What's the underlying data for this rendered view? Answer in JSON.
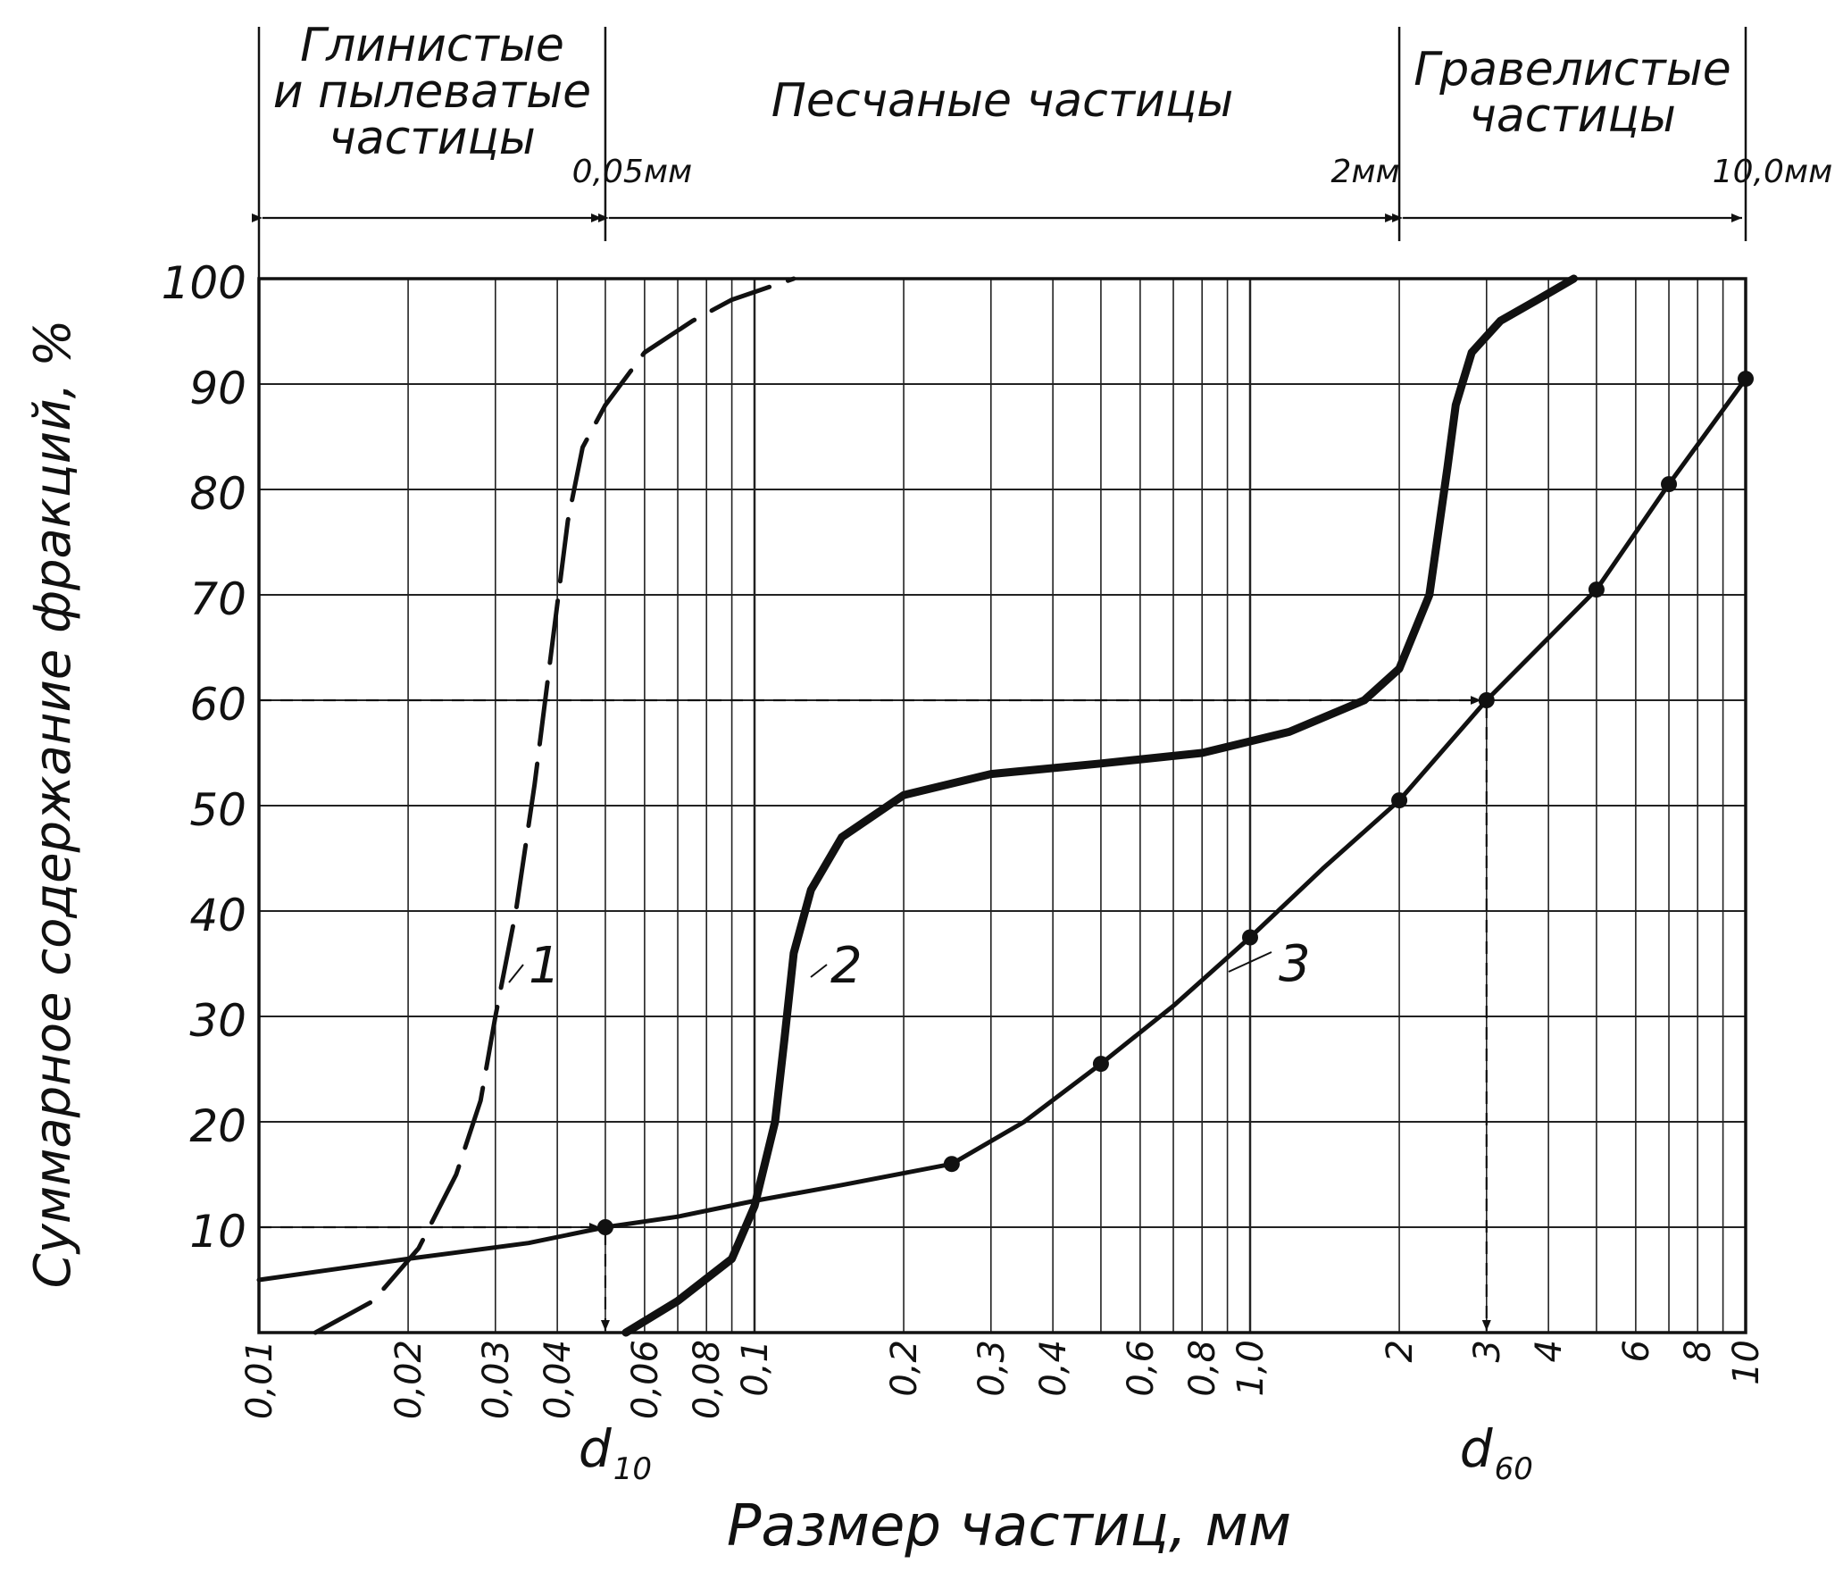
{
  "chart_data": {
    "type": "line",
    "x_scale": "log",
    "xlim": [
      0.01,
      10
    ],
    "ylim": [
      0,
      100
    ],
    "grid": true,
    "xlabel": "Размер   частиц, мм",
    "ylabel": "Суммарное  содержание  фракций, %",
    "yticks": [
      10,
      20,
      30,
      40,
      50,
      60,
      70,
      80,
      90,
      100
    ],
    "xtick_labels": [
      {
        "x": 0.01,
        "text": "0,01"
      },
      {
        "x": 0.02,
        "text": "0,02"
      },
      {
        "x": 0.03,
        "text": "0,03"
      },
      {
        "x": 0.04,
        "text": "0,04"
      },
      {
        "x": 0.06,
        "text": "0,06"
      },
      {
        "x": 0.08,
        "text": "0,08"
      },
      {
        "x": 0.1,
        "text": "0,1"
      },
      {
        "x": 0.2,
        "text": "0,2"
      },
      {
        "x": 0.3,
        "text": "0,3"
      },
      {
        "x": 0.4,
        "text": "0,4"
      },
      {
        "x": 0.6,
        "text": "0,6"
      },
      {
        "x": 0.8,
        "text": "0,8"
      },
      {
        "x": 1.0,
        "text": "1,0"
      },
      {
        "x": 2,
        "text": "2"
      },
      {
        "x": 3,
        "text": "3"
      },
      {
        "x": 4,
        "text": "4"
      },
      {
        "x": 6,
        "text": "6"
      },
      {
        "x": 8,
        "text": "8"
      },
      {
        "x": 10,
        "text": "10"
      }
    ],
    "zones": [
      {
        "name": "Глинистые\nи пылеватые\nчастицы",
        "from": 0.01,
        "to": 0.05
      },
      {
        "name": "Песчаные   частицы",
        "from": 0.05,
        "to": 2
      },
      {
        "name": "Гравелистые\nчастицы",
        "from": 2,
        "to": 10
      }
    ],
    "zone_bounds": [
      {
        "x": 0.05,
        "text": "0,05мм"
      },
      {
        "x": 2,
        "text": "2мм"
      },
      {
        "x": 10,
        "text": "10,0мм"
      }
    ],
    "series": [
      {
        "name": "1",
        "style": "dashed",
        "x": [
          0.013,
          0.017,
          0.021,
          0.025,
          0.028,
          0.03,
          0.033,
          0.036,
          0.039,
          0.042,
          0.045,
          0.05,
          0.06,
          0.075,
          0.09,
          0.12
        ],
        "y": [
          0,
          3,
          8,
          15,
          22,
          30,
          40,
          52,
          65,
          77,
          84,
          88,
          93,
          96,
          98,
          100
        ]
      },
      {
        "name": "2",
        "style": "bold",
        "x": [
          0.055,
          0.07,
          0.09,
          0.1,
          0.11,
          0.115,
          0.12,
          0.13,
          0.15,
          0.2,
          0.3,
          0.5,
          0.8,
          1.2,
          1.7,
          2.0,
          2.3,
          2.5,
          2.6,
          2.8,
          3.2,
          3.8,
          4.5
        ],
        "y": [
          0,
          3,
          7,
          12,
          20,
          28,
          36,
          42,
          47,
          51,
          53,
          54,
          55,
          57,
          60,
          63,
          70,
          82,
          88,
          93,
          96,
          98,
          100
        ]
      },
      {
        "name": "3",
        "style": "solid",
        "x": [
          0.01,
          0.02,
          0.035,
          0.05,
          0.07,
          0.1,
          0.15,
          0.25,
          0.35,
          0.5,
          0.7,
          1.0,
          1.4,
          2.0,
          3.0,
          5.0,
          7.0,
          10.0
        ],
        "y": [
          5,
          7,
          8.5,
          10,
          11,
          12.5,
          14,
          16,
          20,
          25.5,
          31,
          37.5,
          44,
          50.5,
          60,
          70.5,
          80.5,
          90.5
        ]
      }
    ],
    "markers": [
      {
        "x": 0.05,
        "y": 10
      },
      {
        "x": 0.25,
        "y": 16
      },
      {
        "x": 0.5,
        "y": 25.5
      },
      {
        "x": 1.0,
        "y": 37.5
      },
      {
        "x": 2.0,
        "y": 50.5
      },
      {
        "x": 3.0,
        "y": 60
      },
      {
        "x": 5.0,
        "y": 70.5
      },
      {
        "x": 7.0,
        "y": 80.5
      },
      {
        "x": 10.0,
        "y": 90.5
      }
    ],
    "reference_lines": [
      {
        "y": 10,
        "x": 0.05,
        "label": "d",
        "sub": "10"
      },
      {
        "y": 60,
        "x": 3.0,
        "label": "d",
        "sub": "60"
      }
    ]
  }
}
